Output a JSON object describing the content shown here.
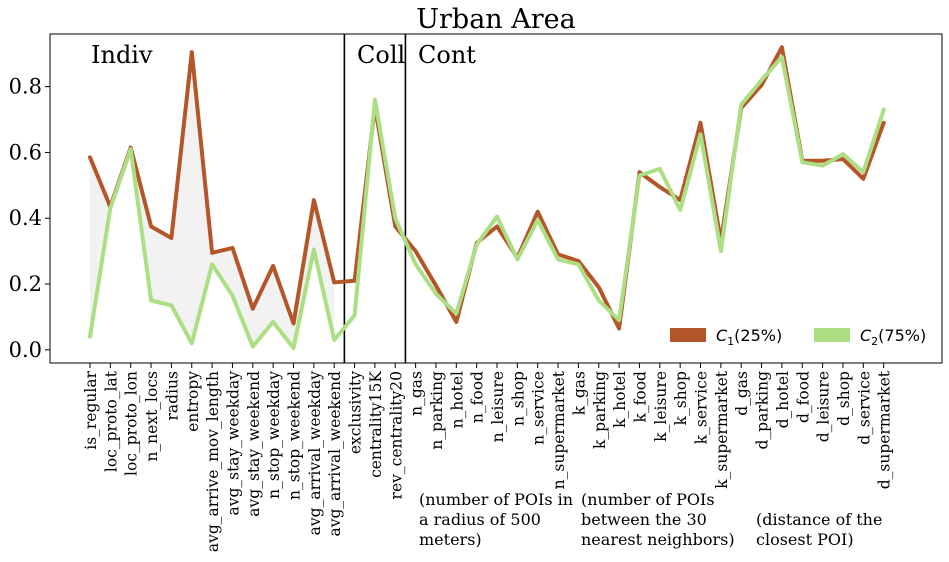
{
  "chart_data": {
    "type": "line",
    "title": "Urban Area",
    "xlabel": "",
    "ylabel": "",
    "ylim": [
      -0.04,
      0.96
    ],
    "yticks": [
      "0.0",
      "0.2",
      "0.4",
      "0.6",
      "0.8"
    ],
    "grid": false,
    "legend_position": "lower-right",
    "categories": [
      "is_regular",
      "loc_proto_lat",
      "loc_proto_lon",
      "n_next_locs",
      "radius",
      "entropy",
      "avg_arrive_mov_length",
      "avg_stay_weekday",
      "avg_stay_weekend",
      "n_stop_weekday",
      "n_stop_weekend",
      "avg_arrival_weekday",
      "avg_arrival_weekend",
      "exclusivity",
      "centrality15K",
      "rev_centrality20",
      "n_gas",
      "n_parking",
      "n_hotel",
      "n_food",
      "n_leisure",
      "n_shop",
      "n_service",
      "n_supermarket",
      "k_gas",
      "k_parking",
      "k_hotel",
      "k_food",
      "k_leisure",
      "k_shop",
      "k_service",
      "k_supermarket",
      "d_gas",
      "d_parking",
      "d_hotel",
      "d_food",
      "d_leisure",
      "d_shop",
      "d_service",
      "d_supermarket"
    ],
    "series": [
      {
        "name_base": "C",
        "name_sub": "1",
        "name_suffix": "(25%)",
        "color": "#b5562a",
        "values": [
          0.585,
          0.435,
          0.615,
          0.375,
          0.34,
          0.905,
          0.295,
          0.31,
          0.125,
          0.255,
          0.08,
          0.455,
          0.205,
          0.21,
          0.74,
          0.375,
          0.3,
          0.195,
          0.085,
          0.325,
          0.375,
          0.28,
          0.42,
          0.29,
          0.27,
          0.19,
          0.065,
          0.54,
          0.495,
          0.455,
          0.69,
          0.33,
          0.735,
          0.805,
          0.92,
          0.575,
          0.575,
          0.58,
          0.52,
          0.69
        ]
      },
      {
        "name_base": "C",
        "name_sub": "2",
        "name_suffix": "(75%)",
        "color": "#acdf84",
        "values": [
          0.04,
          0.43,
          0.61,
          0.15,
          0.135,
          0.02,
          0.26,
          0.165,
          0.01,
          0.085,
          0.005,
          0.305,
          0.03,
          0.105,
          0.76,
          0.4,
          0.26,
          0.17,
          0.11,
          0.32,
          0.405,
          0.275,
          0.395,
          0.275,
          0.26,
          0.15,
          0.09,
          0.53,
          0.55,
          0.425,
          0.655,
          0.3,
          0.745,
          0.82,
          0.89,
          0.57,
          0.56,
          0.595,
          0.54,
          0.73
        ]
      }
    ],
    "group_labels": [
      "Indiv",
      "Coll",
      "Cont"
    ],
    "annotations": [
      "(number of POIs in\na radius of 500\nmeters)",
      "(number of POIs\nbetween the 30\nnearest neighbors)",
      "(distance of the\nclosest POI)"
    ],
    "shaded_region_color": "#f2f2f2"
  }
}
